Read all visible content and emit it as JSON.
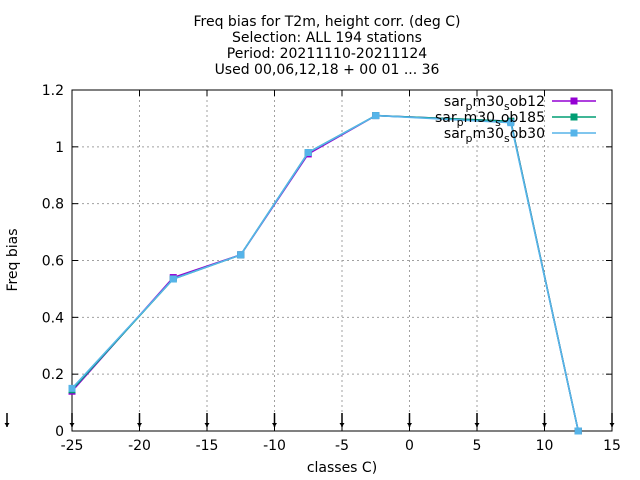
{
  "chart_data": {
    "type": "line",
    "title_lines": [
      "Freq bias  for T2m, height corr. (deg C)",
      "Selection: ALL     194 stations",
      "Period: 20211110-20211124",
      "Used 00,06,12,18 + 00 01 ... 36"
    ],
    "xlabel": "classes C)",
    "ylabel": "Freq bias",
    "xlim": [
      -25,
      15
    ],
    "ylim": [
      0,
      1.2
    ],
    "x_ticks": [
      -25,
      -20,
      -15,
      -10,
      -5,
      0,
      5,
      10,
      15
    ],
    "y_ticks": [
      0,
      0.2,
      0.4,
      0.6,
      0.8,
      1,
      1.2
    ],
    "x_tick_labels": [
      "-25",
      "-20",
      "-15",
      "-10",
      "-5",
      "0",
      "5",
      "10",
      "15"
    ],
    "y_tick_labels": [
      "0",
      "0.2",
      "0.4",
      "0.6",
      "0.8",
      "1",
      "1.2"
    ],
    "grid": true,
    "legend_position": "top-right",
    "x": [
      -25,
      -17.5,
      -12.5,
      -7.5,
      -2.5,
      7.5,
      12.5
    ],
    "series": [
      {
        "name": "sar_pm30_sob12",
        "legend": [
          "sar",
          "p",
          "m30",
          "s",
          "ob12"
        ],
        "color": "#9400d3",
        "marker": "square",
        "values": [
          0.14,
          0.54,
          0.62,
          0.975,
          1.11,
          1.09,
          0.0
        ]
      },
      {
        "name": "sar_pm30_sob185",
        "legend": [
          "sar",
          "p",
          "m30",
          "s",
          "ob185"
        ],
        "color": "#009e73",
        "marker": "square",
        "values": [
          0.145,
          0.535,
          0.62,
          0.98,
          1.11,
          1.09,
          0.0
        ]
      },
      {
        "name": "sar_pm30_sob30",
        "legend": [
          "sar",
          "p",
          "m30",
          "s",
          "ob30"
        ],
        "color": "#56b4e9",
        "marker": "square",
        "values": [
          0.15,
          0.535,
          0.62,
          0.98,
          1.11,
          1.085,
          0.0
        ]
      }
    ],
    "bottom_arrow_x": [
      -25,
      -20,
      -15,
      -10,
      -5,
      0,
      5,
      10,
      15
    ]
  }
}
